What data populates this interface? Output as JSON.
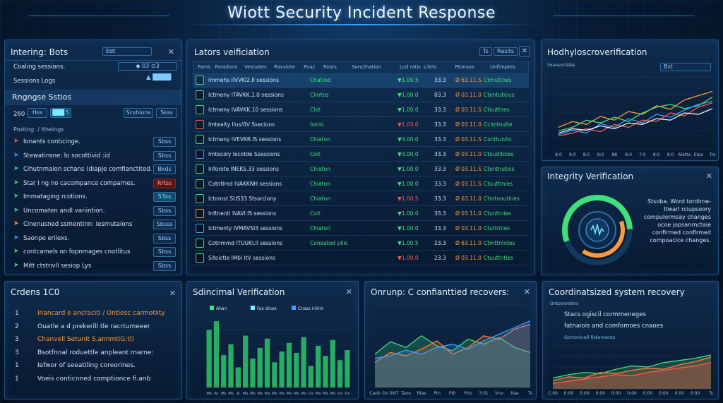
{
  "header": {
    "title": "Wiott Security Incident Response"
  },
  "integrity_panel": {
    "title": "Intering: Bots",
    "top_button": "Edt",
    "rows": [
      {
        "label": "Coaling sessions.",
        "value": "◆ 03 ⊙3"
      },
      {
        "label": "Sessions Logs",
        "value": "▲ ████"
      }
    ],
    "subtitle": "Rngngse Sstios",
    "filter_label": "260",
    "filter_btn1": "Hss",
    "filter_btn2": "██▊5",
    "filter_btn3": "Scshions",
    "filter_btn4": "Ssss",
    "list_title": "Posting: / ltheings",
    "items": [
      {
        "label": "Ionants conticinge.",
        "btn": "Sbss",
        "icon_color": "#ff5a4a",
        "tone": "normal"
      },
      {
        "label": "Stewatinsne: lo socottivid :id",
        "btn": "Sbss",
        "icon_color": "#3fa0ff",
        "tone": "normal"
      },
      {
        "label": "Cihutnmaion schans  (diapje comfianctited.",
        "btn": "Bkds",
        "icon_color": "#3fe07a",
        "tone": "normal"
      },
      {
        "label": "Star I ng no cacompance comparnes.",
        "btn": "Rrtss",
        "icon_color": "#3fe07a",
        "tone": "red"
      },
      {
        "label": "Immataging rcotions.",
        "btn": "53ss",
        "icon_color": "#3fe07a",
        "tone": "cyan"
      },
      {
        "label": "Uncomaten andl variintion.",
        "btn": "Sbss",
        "icon_color": "#3fe07a",
        "tone": "normal"
      },
      {
        "label": "Cinenusned ssmentinn:  Iesmutaions",
        "btn": "Sbsss",
        "icon_color": "#ff9a3a",
        "tone": "normal"
      },
      {
        "label": "Saonpe eriiexs.",
        "btn": "Sbss",
        "icon_color": "#3fa0ff",
        "tone": "normal"
      },
      {
        "label": "contcamels on fopnmages cnotlitus",
        "btn": "Sbss",
        "icon_color": "#3fe07a",
        "tone": "normal"
      },
      {
        "label": "Mitt ctstrivll sesiop Lys",
        "btn": "Sbss",
        "icon_color": "#3fe07a",
        "tone": "normal"
      }
    ]
  },
  "sessions_panel": {
    "title": "Lators veificiation",
    "btn_a": "Ts",
    "btn_b": "Rasits",
    "headers": [
      "Fams",
      "Paradons",
      "Vesnates",
      "Ravsiote",
      "Poaz",
      "Rosts",
      "Soncthation",
      "Lcd ratis",
      "Lilets",
      "Ptonaxs",
      "Unfimptes"
    ],
    "rows": [
      {
        "icon_color": "#3fe07a",
        "name": "Immehs IIVVKI2.II sessions",
        "status": "Chatiod",
        "v1": "▼1.00.5",
        "v2": "33.3",
        "v3": "Ø 63.11.S",
        "tag": "Ctmuttnes",
        "tone": "g"
      },
      {
        "icon_color": "#3fe07a",
        "name": "Ictmeny ITAVKK.1.0 sessions",
        "status": "Chirtos",
        "v1": "▼1.00.0",
        "v2": "03.3",
        "v3": "Ø 03.11.0",
        "tag": "Ctentutious",
        "tone": "g"
      },
      {
        "icon_color": "#3fe07a",
        "name": "Ictmeny IVAVKK.10 sessions",
        "status": "Clot",
        "v1": "▼1.00.0",
        "v2": "33.3",
        "v3": "Ø 03.11.S",
        "tag": "Ctouttnes",
        "tone": "g"
      },
      {
        "icon_color": "#ff5a4a",
        "name": "Imteaity Ilus/0V Ssecions",
        "status": "Isinio",
        "v1": "▼1.03.0",
        "v2": "33.3",
        "v3": "Ø 03.11.0",
        "tag": "Ccimtoulte",
        "tone": "r"
      },
      {
        "icon_color": "#3fe07a",
        "name": "Ictmeny IVEVKR.IS sessions",
        "status": "Chiaton",
        "v1": "▼3.00.0",
        "v2": "33.3",
        "v3": "Ø 03.11.S",
        "tag": "Conttunito",
        "tone": "g"
      },
      {
        "icon_color": "#3fa0ff",
        "name": "Imtecoly Iecotde Ssessions",
        "status": "Coit",
        "v1": "▼3.00.0",
        "v2": "33.3",
        "v3": "Ø 03.11.0",
        "tag": "Ctouditoies",
        "tone": "g"
      },
      {
        "icon_color": "#3fe07a",
        "name": "Inforote INEKS.33 sessions",
        "status": "Chiaton",
        "v1": "▼1.00.0",
        "v2": "33.3",
        "v3": "Ø 03.11.S",
        "tag": "Ctentnutios",
        "tone": "g"
      },
      {
        "icon_color": "#3fe07a",
        "name": "Cotntimd IVAKKNH sessions",
        "status": "Chiaton",
        "v1": "▼1.00.0",
        "v2": "33.3",
        "v3": "Ø 03.11.S",
        "tag": "Ctuuttinies",
        "tone": "g"
      },
      {
        "icon_color": "#3fe07a",
        "name": "Ictomst SUS33 Stsorclony",
        "status": "Chiaton",
        "v1": "▼1.00.5",
        "v2": "33.3",
        "v3": "Ø 63.11.0",
        "tag": "Ctmtnoutines",
        "tone": "r"
      },
      {
        "icon_color": "#ff9a3a",
        "name": "Inftnenti IVAVI.IS sessions",
        "status": "Coit",
        "v1": "▼1.00.0",
        "v2": "33.3",
        "v3": "Ø 03.11.0",
        "tag": "Ctunttnies",
        "tone": "g"
      },
      {
        "icon_color": "#3fa0ff",
        "name": "Ictmenty IVMAVSI3 sessions",
        "status": "Chiaton",
        "v1": "▼1.00.0",
        "v2": "33.3",
        "v3": "Ø 03.11.0",
        "tag": "Ctuttnties",
        "tone": "g"
      },
      {
        "icon_color": "#3fe07a",
        "name": "Cotnmmd ITUUKI.II sessions",
        "status": "Coneatod pilic",
        "v1": "▼1.00.5",
        "v2": "23.3",
        "v3": "Ø 63.11.0",
        "tag": "Ctmttnnites",
        "tone": "g"
      },
      {
        "icon_color": "#3fe07a",
        "name": "Sitoictle IMbl ItV sessions",
        "status": "",
        "v1": "▼1.00.0",
        "v2": "23.3",
        "v3": "Ø 03.11.0",
        "tag": "Ctuuttnties",
        "tone": "r"
      }
    ]
  },
  "hodhy_panel": {
    "title": "Hodhyloscroverification",
    "chip": "Bst",
    "ylabel": "Soansurtates",
    "chart_data": {
      "type": "line",
      "x": [
        "8:0",
        "8:0",
        "8:0",
        "8:0",
        "88",
        "8:0",
        "7:0",
        "8:0",
        "8:0",
        "Aletta",
        "Etos",
        "Trs"
      ],
      "series": [
        {
          "color": "#ff9a3a",
          "values": [
            30,
            38,
            34,
            45,
            40,
            52,
            48,
            60,
            55,
            68,
            74,
            80
          ]
        },
        {
          "color": "#3fe07a",
          "values": [
            25,
            30,
            40,
            36,
            44,
            38,
            50,
            58,
            62,
            56,
            60,
            72
          ]
        },
        {
          "color": "#3fa0ff",
          "values": [
            20,
            26,
            22,
            35,
            30,
            42,
            36,
            48,
            44,
            54,
            62,
            66
          ]
        },
        {
          "color": "#ff5a4a",
          "values": [
            18,
            22,
            28,
            24,
            34,
            30,
            40,
            38,
            50,
            46,
            58,
            64
          ]
        },
        {
          "color": "#e6f1fb",
          "values": [
            22,
            28,
            26,
            32,
            28,
            36,
            34,
            42,
            40,
            50,
            48,
            56
          ]
        }
      ],
      "ylim": [
        0,
        100
      ]
    }
  },
  "integrity_verif": {
    "title": "Integrity Verification",
    "lines": [
      "Stsoba. Word tordirne-",
      "Itwarl rciupsoory",
      "compulormsay changes",
      "ocoe jopsanrnctaie",
      "confirmed confirmed",
      "compoacice changes."
    ],
    "gauge": {
      "green": 0.55,
      "orange": 0.4
    }
  },
  "orders_panel": {
    "title": "Crdens 1C0",
    "items": [
      {
        "num": "1",
        "label": "Inancard e ancraciti / Ontiesc carmotiity",
        "color": "#ff9a3a"
      },
      {
        "num": "2",
        "label": "Ouatle a d prekerill tle racrtumeeer",
        "color": "#cfe3f7"
      },
      {
        "num": "3",
        "label": "Chanvell Setunit S.annmtiG;tl)",
        "color": "#ff9a3a"
      },
      {
        "num": "3",
        "label": "Bsotfnnal roduettle anpleant rnarne:",
        "color": "#cfe3f7"
      },
      {
        "num": "1",
        "label": "Iefwor of seeatiling coreorines.",
        "color": "#cfe3f7"
      },
      {
        "num": "1",
        "label": "Voeis  conticnned  comptionce fi.anb",
        "color": "#cfe3f7"
      }
    ]
  },
  "bar_panel": {
    "title": "Sdincirnal Verification",
    "legend": [
      "Ahan",
      "Fas dinos",
      "Cnass inlirin"
    ],
    "chart_data": {
      "type": "bar",
      "categories": [
        "Ms",
        "Ar",
        "Ms",
        "Ms",
        "A",
        "Ms",
        "Ms",
        "Ms",
        "Ms",
        "Ms",
        "Ms",
        "Ms",
        "Ms",
        "Ms",
        "Ds",
        "Ms",
        "Ms",
        "Ms",
        "Ds",
        "Ds"
      ],
      "values": [
        80,
        92,
        45,
        60,
        28,
        72,
        40,
        55,
        68,
        35,
        50,
        62,
        48,
        70,
        30,
        58,
        44,
        66,
        38,
        52
      ],
      "ylim": [
        0,
        100
      ]
    }
  },
  "recovers_panel": {
    "title": "Onrunp: C confianttied recovers:",
    "chart_data": {
      "type": "area",
      "x": [
        "Caob",
        "Oo l007",
        "Taou",
        "Rtas",
        "Ptn",
        "Pdr",
        "Prio",
        "3:01",
        "Vno",
        "Raa",
        "Ts"
      ],
      "series": [
        {
          "color": "#3fe07a",
          "values": [
            40,
            55,
            48,
            62,
            50,
            44,
            58,
            52,
            60,
            48,
            42
          ]
        },
        {
          "color": "#ff7a3a",
          "values": [
            30,
            42,
            38,
            46,
            56,
            40,
            48,
            62,
            58,
            70,
            76
          ]
        },
        {
          "color": "#3fa0ff",
          "values": [
            35,
            38,
            45,
            40,
            48,
            52,
            46,
            56,
            64,
            72,
            80
          ]
        }
      ],
      "ylim": [
        0,
        100
      ]
    }
  },
  "coord_panel": {
    "title": "Coordinatsized system recovery",
    "ylabel": "Ontsrsvrotins",
    "lines": [
      "Stacs ogiscil cormmeneges",
      "fatnaiois and comfomoes cnaoes",
      "Gortenicall fisternents"
    ],
    "chart_data": {
      "type": "line",
      "x": [
        "C:00",
        "0:00",
        "0:00",
        "0:00",
        "0:00",
        "0:00",
        "0:00",
        "0:00",
        "0:00",
        "0:00",
        "Ts"
      ],
      "series": [
        {
          "color": "#3fe07a",
          "values": [
            20,
            26,
            30,
            28,
            36,
            42,
            40,
            48,
            52,
            56,
            62
          ]
        },
        {
          "color": "#ff7a3a",
          "values": [
            15,
            22,
            20,
            30,
            28,
            34,
            38,
            36,
            44,
            50,
            58
          ]
        },
        {
          "color": "#ff5a4a",
          "values": [
            10,
            14,
            18,
            22,
            26,
            24,
            30,
            34,
            38,
            42,
            48
          ]
        }
      ],
      "ylim": [
        0,
        80
      ]
    }
  }
}
